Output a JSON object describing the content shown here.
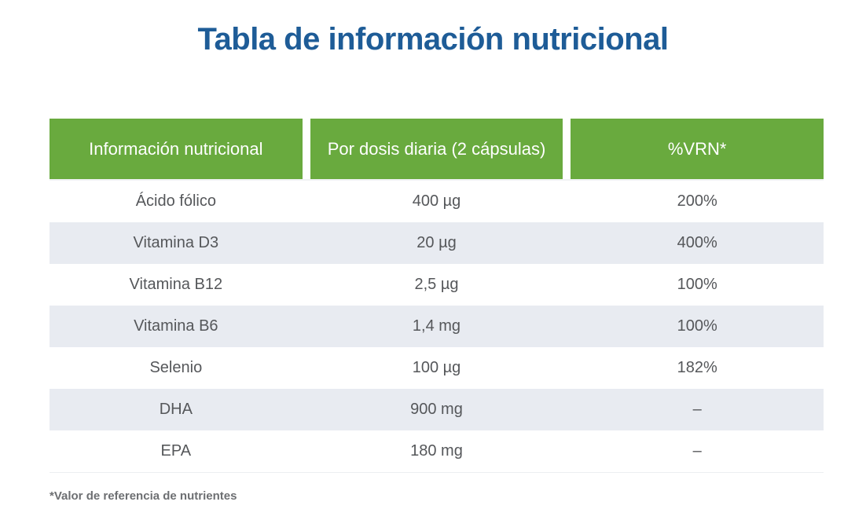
{
  "page": {
    "title": "Tabla de información nutricional",
    "footnote": "*Valor de referencia de nutrientes"
  },
  "table": {
    "headers": [
      "Información nutricional",
      "Por dosis diaria (2 cápsulas)",
      "%VRN*"
    ],
    "rows": [
      {
        "name": "Ácido fólico",
        "dose": "400 µg",
        "vrn": "200%"
      },
      {
        "name": "Vitamina D3",
        "dose": "20 µg",
        "vrn": "400%"
      },
      {
        "name": "Vitamina B12",
        "dose": "2,5 µg",
        "vrn": "100%"
      },
      {
        "name": "Vitamina B6",
        "dose": "1,4 mg",
        "vrn": "100%"
      },
      {
        "name": "Selenio",
        "dose": "100 µg",
        "vrn": "182%"
      },
      {
        "name": "DHA",
        "dose": "900 mg",
        "vrn": "–"
      },
      {
        "name": "EPA",
        "dose": "180 mg",
        "vrn": "–"
      }
    ]
  },
  "colors": {
    "title": "#1e5c97",
    "header_bg": "#69aa3e",
    "header_text": "#ffffff",
    "row_alt_bg": "#e8ebf1",
    "body_text": "#55575a",
    "footnote_text": "#6d6f72"
  }
}
